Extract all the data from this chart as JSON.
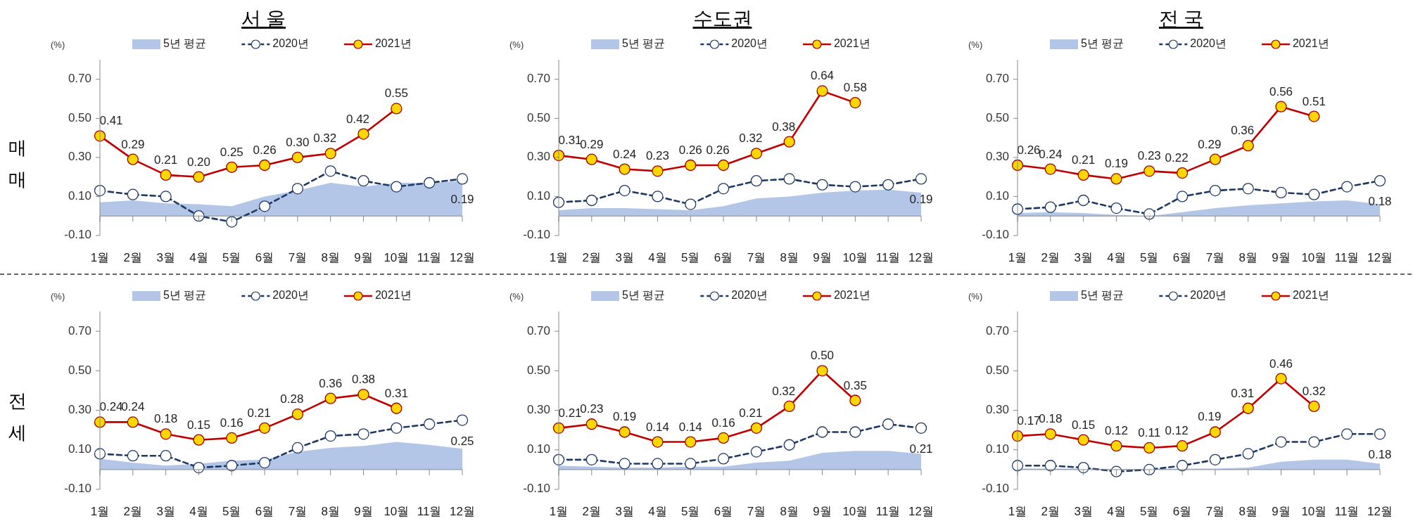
{
  "chart_data": [
    {
      "type": "line",
      "title": "서 울",
      "ylabel": "매매",
      "annotations": [
        "(%)"
      ],
      "legend": "top",
      "categories": [
        "1월",
        "2월",
        "3월",
        "4월",
        "5월",
        "6월",
        "7월",
        "8월",
        "9월",
        "10월",
        "11월",
        "12월"
      ],
      "ylim": [
        -0.1,
        0.8
      ],
      "yticks": [
        {
          "value": -0.1,
          "label": "-0.10"
        },
        {
          "value": 0.1,
          "label": "0.10"
        },
        {
          "value": 0.3,
          "label": "0.30"
        },
        {
          "value": 0.5,
          "label": "0.50"
        },
        {
          "value": 0.7,
          "label": "0.70"
        }
      ],
      "series": [
        {
          "name": "5년 평균",
          "type": "area",
          "color": "#b4c6e7",
          "values": [
            0.07,
            0.08,
            0.065,
            0.06,
            0.05,
            0.1,
            0.13,
            0.17,
            0.15,
            0.17,
            0.17,
            0.18
          ]
        },
        {
          "name": "2020년",
          "color": "#1f3864",
          "line_style": "dashed",
          "marker": "circle",
          "values": [
            0.13,
            0.11,
            0.1,
            0.0,
            -0.03,
            0.05,
            0.14,
            0.23,
            0.18,
            0.15,
            0.17,
            0.19
          ],
          "value_labels": [
            null,
            null,
            null,
            null,
            null,
            null,
            null,
            null,
            null,
            null,
            null,
            "0.19"
          ]
        },
        {
          "name": "2021년",
          "color": "#c00000",
          "line_style": "solid",
          "marker": "circle",
          "values": [
            0.41,
            0.29,
            0.21,
            0.2,
            0.25,
            0.26,
            0.3,
            0.32,
            0.42,
            0.55,
            null,
            null
          ],
          "value_labels": [
            "0.41",
            "0.29",
            "0.21",
            "0.20",
            "0.25",
            "0.26",
            "0.30",
            "0.32",
            "0.42",
            "0.55",
            null,
            null
          ]
        }
      ]
    },
    {
      "type": "line",
      "title": "수도권",
      "annotations": [
        "(%)"
      ],
      "legend": "top",
      "categories": [
        "1월",
        "2월",
        "3월",
        "4월",
        "5월",
        "6월",
        "7월",
        "8월",
        "9월",
        "10월",
        "11월",
        "12월"
      ],
      "ylim": [
        -0.1,
        0.8
      ],
      "yticks": [
        {
          "value": -0.1,
          "label": "-0.10"
        },
        {
          "value": 0.1,
          "label": "0.10"
        },
        {
          "value": 0.3,
          "label": "0.30"
        },
        {
          "value": 0.5,
          "label": "0.50"
        },
        {
          "value": 0.7,
          "label": "0.70"
        }
      ],
      "series": [
        {
          "name": "5년 평균",
          "type": "area",
          "color": "#b4c6e7",
          "values": [
            0.03,
            0.04,
            0.04,
            0.035,
            0.03,
            0.05,
            0.09,
            0.1,
            0.12,
            0.13,
            0.135,
            0.12
          ]
        },
        {
          "name": "2020년",
          "color": "#1f3864",
          "line_style": "dashed",
          "marker": "circle",
          "values": [
            0.07,
            0.08,
            0.13,
            0.1,
            0.06,
            0.14,
            0.18,
            0.19,
            0.16,
            0.15,
            0.16,
            0.19
          ],
          "value_labels": [
            null,
            null,
            null,
            null,
            null,
            null,
            null,
            null,
            null,
            null,
            null,
            "0.19"
          ]
        },
        {
          "name": "2021년",
          "color": "#c00000",
          "line_style": "solid",
          "marker": "circle",
          "values": [
            0.31,
            0.29,
            0.24,
            0.23,
            0.26,
            0.26,
            0.32,
            0.38,
            0.64,
            0.58,
            null,
            null
          ],
          "value_labels": [
            "0.31",
            "0.29",
            "0.24",
            "0.23",
            "0.26",
            "0.26",
            "0.32",
            "0.38",
            "0.64",
            "0.58",
            null,
            null
          ]
        }
      ]
    },
    {
      "type": "line",
      "title": "전 국",
      "annotations": [
        "(%)"
      ],
      "legend": "top",
      "categories": [
        "1월",
        "2월",
        "3월",
        "4월",
        "5월",
        "6월",
        "7월",
        "8월",
        "9월",
        "10월",
        "11월",
        "12월"
      ],
      "ylim": [
        -0.1,
        0.8
      ],
      "yticks": [
        {
          "value": -0.1,
          "label": "-0.10"
        },
        {
          "value": 0.1,
          "label": "0.10"
        },
        {
          "value": 0.3,
          "label": "0.30"
        },
        {
          "value": 0.5,
          "label": "0.50"
        },
        {
          "value": 0.7,
          "label": "0.70"
        }
      ],
      "series": [
        {
          "name": "5년 평균",
          "type": "area",
          "color": "#b4c6e7",
          "values": [
            0.015,
            0.02,
            0.015,
            0.005,
            0.0,
            0.02,
            0.04,
            0.055,
            0.065,
            0.075,
            0.08,
            0.06
          ]
        },
        {
          "name": "2020년",
          "color": "#1f3864",
          "line_style": "dashed",
          "marker": "circle",
          "values": [
            0.035,
            0.045,
            0.08,
            0.04,
            0.01,
            0.1,
            0.13,
            0.14,
            0.12,
            0.11,
            0.15,
            0.18
          ],
          "value_labels": [
            null,
            null,
            null,
            null,
            null,
            null,
            null,
            null,
            null,
            null,
            null,
            "0.18"
          ]
        },
        {
          "name": "2021년",
          "color": "#c00000",
          "line_style": "solid",
          "marker": "circle",
          "values": [
            0.26,
            0.24,
            0.21,
            0.19,
            0.23,
            0.22,
            0.29,
            0.36,
            0.56,
            0.51,
            null,
            null
          ],
          "value_labels": [
            "0.26",
            "0.24",
            "0.21",
            "0.19",
            "0.23",
            "0.22",
            "0.29",
            "0.36",
            "0.56",
            "0.51",
            null,
            null
          ]
        }
      ]
    },
    {
      "type": "line",
      "ylabel": "전세",
      "annotations": [
        "(%)"
      ],
      "legend": "top",
      "categories": [
        "1월",
        "2월",
        "3월",
        "4월",
        "5월",
        "6월",
        "7월",
        "8월",
        "9월",
        "10월",
        "11월",
        "12월"
      ],
      "ylim": [
        -0.1,
        0.8
      ],
      "yticks": [
        {
          "value": -0.1,
          "label": "-0.10"
        },
        {
          "value": 0.1,
          "label": "0.10"
        },
        {
          "value": 0.3,
          "label": "0.30"
        },
        {
          "value": 0.5,
          "label": "0.50"
        },
        {
          "value": 0.7,
          "label": "0.70"
        }
      ],
      "series": [
        {
          "name": "5년 평균",
          "type": "area",
          "color": "#b4c6e7",
          "values": [
            0.055,
            0.035,
            0.02,
            0.03,
            0.045,
            0.05,
            0.09,
            0.11,
            0.12,
            0.14,
            0.125,
            0.105
          ]
        },
        {
          "name": "2020년",
          "color": "#1f3864",
          "line_style": "dashed",
          "marker": "circle",
          "values": [
            0.08,
            0.07,
            0.07,
            0.01,
            0.02,
            0.035,
            0.11,
            0.17,
            0.18,
            0.21,
            0.23,
            0.25
          ],
          "value_labels": [
            null,
            null,
            null,
            null,
            null,
            null,
            null,
            null,
            null,
            null,
            null,
            "0.25"
          ]
        },
        {
          "name": "2021년",
          "color": "#c00000",
          "line_style": "solid",
          "marker": "circle",
          "values": [
            0.24,
            0.24,
            0.18,
            0.15,
            0.16,
            0.21,
            0.28,
            0.36,
            0.38,
            0.31,
            null,
            null
          ],
          "value_labels": [
            "0.24",
            "0.24",
            "0.18",
            "0.15",
            "0.16",
            "0.21",
            "0.28",
            "0.36",
            "0.38",
            "0.31",
            null,
            null
          ]
        }
      ]
    },
    {
      "type": "line",
      "annotations": [
        "(%)"
      ],
      "legend": "top",
      "categories": [
        "1월",
        "2월",
        "3월",
        "4월",
        "5월",
        "6월",
        "7월",
        "8월",
        "9월",
        "10월",
        "11월",
        "12월"
      ],
      "ylim": [
        -0.1,
        0.8
      ],
      "yticks": [
        {
          "value": -0.1,
          "label": "-0.10"
        },
        {
          "value": 0.1,
          "label": "0.10"
        },
        {
          "value": 0.3,
          "label": "0.30"
        },
        {
          "value": 0.5,
          "label": "0.50"
        },
        {
          "value": 0.7,
          "label": "0.70"
        }
      ],
      "series": [
        {
          "name": "5년 평균",
          "type": "area",
          "color": "#b4c6e7",
          "values": [
            0.02,
            0.015,
            0.01,
            0.01,
            0.015,
            0.015,
            0.035,
            0.045,
            0.085,
            0.095,
            0.095,
            0.08
          ]
        },
        {
          "name": "2020년",
          "color": "#1f3864",
          "line_style": "dashed",
          "marker": "circle",
          "values": [
            0.05,
            0.05,
            0.03,
            0.03,
            0.03,
            0.055,
            0.09,
            0.125,
            0.19,
            0.19,
            0.23,
            0.21
          ],
          "value_labels": [
            null,
            null,
            null,
            null,
            null,
            null,
            null,
            null,
            null,
            null,
            null,
            "0.21"
          ]
        },
        {
          "name": "2021년",
          "color": "#c00000",
          "line_style": "solid",
          "marker": "circle",
          "values": [
            0.21,
            0.23,
            0.19,
            0.14,
            0.14,
            0.16,
            0.21,
            0.32,
            0.5,
            0.35,
            null,
            null
          ],
          "value_labels": [
            "0.21",
            "0.23",
            "0.19",
            "0.14",
            "0.14",
            "0.16",
            "0.21",
            "0.32",
            "0.50",
            "0.35",
            null,
            null
          ]
        }
      ]
    },
    {
      "type": "line",
      "annotations": [
        "(%)"
      ],
      "legend": "top",
      "categories": [
        "1월",
        "2월",
        "3월",
        "4월",
        "5월",
        "6월",
        "7월",
        "8월",
        "9월",
        "10월",
        "11월",
        "12월"
      ],
      "ylim": [
        -0.1,
        0.8
      ],
      "yticks": [
        {
          "value": -0.1,
          "label": "-0.10"
        },
        {
          "value": 0.1,
          "label": "0.10"
        },
        {
          "value": 0.3,
          "label": "0.30"
        },
        {
          "value": 0.5,
          "label": "0.50"
        },
        {
          "value": 0.7,
          "label": "0.70"
        }
      ],
      "series": [
        {
          "name": "5년 평균",
          "type": "area",
          "color": "#b4c6e7",
          "values": [
            0.005,
            0.005,
            0.005,
            0.003,
            0.003,
            0.005,
            0.005,
            0.01,
            0.04,
            0.05,
            0.05,
            0.03
          ]
        },
        {
          "name": "2020년",
          "color": "#1f3864",
          "line_style": "dashed",
          "marker": "circle",
          "values": [
            0.02,
            0.02,
            0.01,
            -0.01,
            0.0,
            0.02,
            0.05,
            0.08,
            0.14,
            0.14,
            0.18,
            0.18
          ],
          "value_labels": [
            null,
            null,
            null,
            null,
            null,
            null,
            null,
            null,
            null,
            null,
            null,
            "0.18"
          ]
        },
        {
          "name": "2021년",
          "color": "#c00000",
          "line_style": "solid",
          "marker": "circle",
          "values": [
            0.17,
            0.18,
            0.15,
            0.12,
            0.11,
            0.12,
            0.19,
            0.31,
            0.46,
            0.32,
            null,
            null
          ],
          "value_labels": [
            "0.17",
            "0.18",
            "0.15",
            "0.12",
            "0.11",
            "0.12",
            "0.19",
            "0.31",
            "0.46",
            "0.32",
            null,
            null
          ]
        }
      ]
    }
  ]
}
